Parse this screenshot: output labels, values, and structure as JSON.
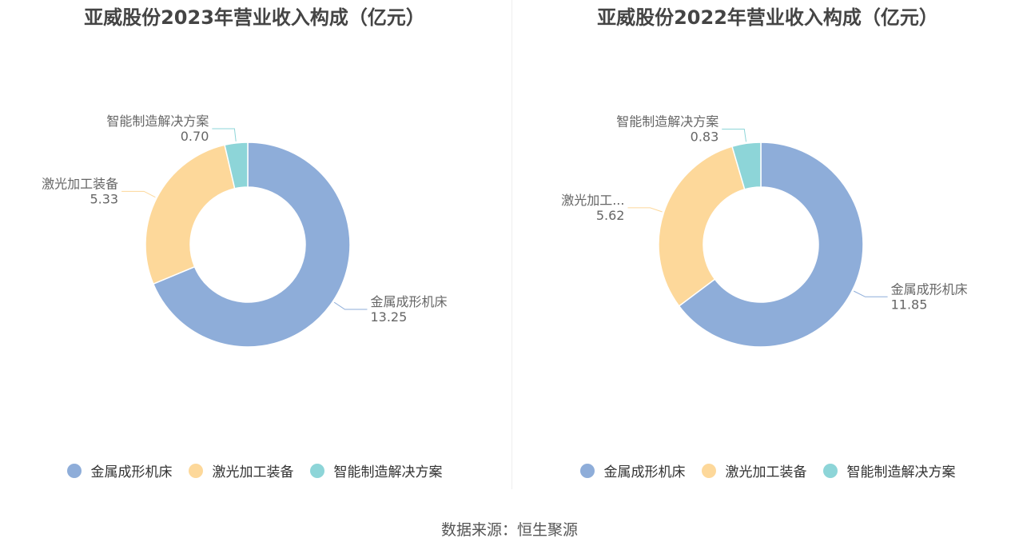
{
  "chart_data": [
    {
      "type": "pie",
      "title": "亚威股份2023年营业收入构成（亿元）",
      "categories": [
        "金属成形机床",
        "激光加工装备",
        "智能制造解决方案"
      ],
      "values": [
        13.25,
        5.33,
        0.7
      ],
      "value_labels": [
        "13.25",
        "5.33",
        "0.70"
      ],
      "label_texts": [
        "金属成形机床",
        "激光加工装备",
        "智能制造解决方案"
      ],
      "legend_position": "bottom",
      "donut": true
    },
    {
      "type": "pie",
      "title": "亚威股份2022年营业收入构成（亿元）",
      "categories": [
        "金属成形机床",
        "激光加工装备",
        "智能制造解决方案"
      ],
      "values": [
        11.85,
        5.62,
        0.83
      ],
      "value_labels": [
        "11.85",
        "5.62",
        "0.83"
      ],
      "label_texts": [
        "金属成形机床",
        "激光加工...",
        "智能制造解决方案"
      ],
      "legend_position": "bottom",
      "donut": true
    }
  ],
  "colors": [
    "#8eadd9",
    "#fdd89a",
    "#8dd5d8"
  ],
  "source": "数据来源：恒生聚源"
}
